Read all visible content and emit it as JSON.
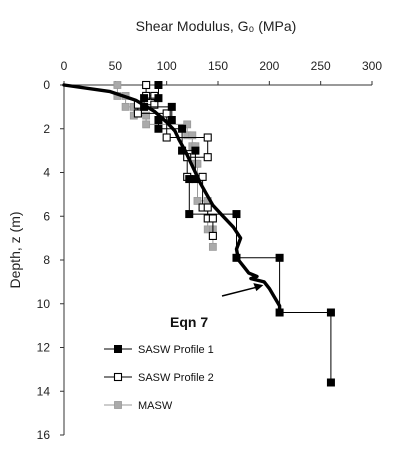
{
  "chart_data": {
    "type": "line",
    "title": "Shear Modulus, G₀ (MPa)",
    "ylabel": "Depth, z (m)",
    "x_axis_position": "top",
    "y_axis_inverted": true,
    "xlim": [
      0,
      300
    ],
    "ylim": [
      0,
      16
    ],
    "x_ticks": [
      0,
      50,
      100,
      150,
      200,
      250,
      300
    ],
    "y_ticks": [
      0,
      2,
      4,
      6,
      8,
      10,
      12,
      14,
      16
    ],
    "grid": false,
    "legend_position": "bottom-left",
    "annotation": {
      "text": "Eqn 7",
      "arrow_target": {
        "x": 200,
        "z": 9.1
      }
    },
    "series": [
      {
        "name": "SASW Profile 1",
        "marker": "filled-square",
        "color": "#000000",
        "points": [
          {
            "x": 92,
            "z": 0
          },
          {
            "x": 92,
            "z": 0.6
          },
          {
            "x": 78,
            "z": 0.6
          },
          {
            "x": 78,
            "z": 1.0
          },
          {
            "x": 105,
            "z": 1.0
          },
          {
            "x": 105,
            "z": 1.6
          },
          {
            "x": 92,
            "z": 1.6
          },
          {
            "x": 92,
            "z": 2.0
          },
          {
            "x": 115,
            "z": 2.0
          },
          {
            "x": 115,
            "z": 3.0
          },
          {
            "x": 128,
            "z": 3.0
          },
          {
            "x": 128,
            "z": 4.3
          },
          {
            "x": 122,
            "z": 4.3
          },
          {
            "x": 122,
            "z": 5.9
          },
          {
            "x": 168,
            "z": 5.9
          },
          {
            "x": 168,
            "z": 7.9
          },
          {
            "x": 210,
            "z": 7.9
          },
          {
            "x": 210,
            "z": 10.4
          },
          {
            "x": 260,
            "z": 10.4
          },
          {
            "x": 260,
            "z": 13.6
          }
        ]
      },
      {
        "name": "SASW Profile 2",
        "marker": "open-square",
        "color": "#000000",
        "points": [
          {
            "x": 80,
            "z": 0
          },
          {
            "x": 80,
            "z": 0.5
          },
          {
            "x": 88,
            "z": 0.5
          },
          {
            "x": 88,
            "z": 0.9
          },
          {
            "x": 72,
            "z": 0.9
          },
          {
            "x": 72,
            "z": 1.3
          },
          {
            "x": 100,
            "z": 1.3
          },
          {
            "x": 100,
            "z": 2.4
          },
          {
            "x": 140,
            "z": 2.4
          },
          {
            "x": 140,
            "z": 3.3
          },
          {
            "x": 120,
            "z": 3.3
          },
          {
            "x": 120,
            "z": 4.2
          },
          {
            "x": 135,
            "z": 4.2
          },
          {
            "x": 135,
            "z": 5.6
          },
          {
            "x": 140,
            "z": 5.6
          },
          {
            "x": 140,
            "z": 6.1
          },
          {
            "x": 145,
            "z": 6.1
          },
          {
            "x": 145,
            "z": 6.9
          }
        ]
      },
      {
        "name": "MASW",
        "marker": "gray-square",
        "color": "#999999",
        "points": [
          {
            "x": 52,
            "z": 0
          },
          {
            "x": 52,
            "z": 0.5
          },
          {
            "x": 60,
            "z": 0.5
          },
          {
            "x": 60,
            "z": 1.0
          },
          {
            "x": 68,
            "z": 1.0
          },
          {
            "x": 68,
            "z": 1.4
          },
          {
            "x": 80,
            "z": 1.4
          },
          {
            "x": 80,
            "z": 1.8
          },
          {
            "x": 120,
            "z": 1.8
          },
          {
            "x": 120,
            "z": 2.3
          },
          {
            "x": 125,
            "z": 2.3
          },
          {
            "x": 125,
            "z": 2.8
          },
          {
            "x": 128,
            "z": 2.8
          },
          {
            "x": 128,
            "z": 3.6
          },
          {
            "x": 130,
            "z": 3.6
          },
          {
            "x": 130,
            "z": 5.3
          },
          {
            "x": 140,
            "z": 5.3
          },
          {
            "x": 140,
            "z": 6.6
          },
          {
            "x": 145,
            "z": 6.6
          },
          {
            "x": 145,
            "z": 7.4
          }
        ]
      },
      {
        "name": "Eqn 7",
        "marker": "none",
        "color": "#000000",
        "style": "thick-line",
        "points": [
          {
            "x": 0,
            "z": 0
          },
          {
            "x": 45,
            "z": 0.3
          },
          {
            "x": 70,
            "z": 0.7
          },
          {
            "x": 88,
            "z": 1.2
          },
          {
            "x": 100,
            "z": 1.7
          },
          {
            "x": 108,
            "z": 2.1
          },
          {
            "x": 112,
            "z": 2.5
          },
          {
            "x": 118,
            "z": 3.0
          },
          {
            "x": 124,
            "z": 3.6
          },
          {
            "x": 128,
            "z": 4.0
          },
          {
            "x": 133,
            "z": 4.5
          },
          {
            "x": 139,
            "z": 5.0
          },
          {
            "x": 145,
            "z": 5.5
          },
          {
            "x": 155,
            "z": 6.0
          },
          {
            "x": 165,
            "z": 6.5
          },
          {
            "x": 172,
            "z": 7.0
          },
          {
            "x": 168,
            "z": 7.5
          },
          {
            "x": 170,
            "z": 8.0
          },
          {
            "x": 175,
            "z": 8.3
          },
          {
            "x": 180,
            "z": 8.6
          },
          {
            "x": 188,
            "z": 8.75
          },
          {
            "x": 182,
            "z": 8.85
          },
          {
            "x": 195,
            "z": 9.0
          },
          {
            "x": 200,
            "z": 9.3
          },
          {
            "x": 205,
            "z": 9.7
          },
          {
            "x": 210,
            "z": 10.1
          },
          {
            "x": 210,
            "z": 10.4
          }
        ]
      }
    ]
  }
}
